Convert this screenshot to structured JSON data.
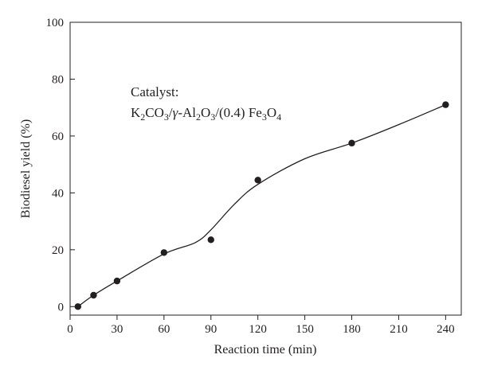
{
  "chart_data": {
    "type": "scatter",
    "title": "",
    "xlabel": "Reaction time (min)",
    "ylabel": "Biodiesel yield (%)",
    "xlim": [
      0,
      250
    ],
    "ylim": [
      -3,
      100
    ],
    "xticks": [
      "0",
      "30",
      "60",
      "90",
      "120",
      "150",
      "180",
      "210",
      "240"
    ],
    "yticks": [
      "0",
      "20",
      "40",
      "60",
      "80",
      "100"
    ],
    "grid": false,
    "series": [
      {
        "x": [
          5,
          15,
          30,
          60,
          90,
          120,
          180,
          240
        ],
        "y": [
          0,
          4,
          9,
          19,
          23.5,
          44.5,
          57.5,
          71
        ],
        "marker": "filled-circle",
        "color": "#231f20"
      }
    ],
    "fit_curve": [
      [
        5,
        0
      ],
      [
        15,
        4
      ],
      [
        30,
        9
      ],
      [
        60,
        18.5
      ],
      [
        80,
        22.5
      ],
      [
        90,
        27
      ],
      [
        105,
        36
      ],
      [
        120,
        43
      ],
      [
        150,
        52
      ],
      [
        180,
        57.5
      ],
      [
        210,
        64
      ],
      [
        240,
        71
      ]
    ],
    "annotation": {
      "line1": "Catalyst:",
      "k": "K",
      "k_sub": "2",
      "co": "CO",
      "co_sub": "3",
      "slash1": "/",
      "gamma": "γ",
      "al": "-Al",
      "al_sub": "2",
      "o": "O",
      "o_sub": "3",
      "mid": "/(0.4) Fe",
      "fe_sub": "3",
      "o2": "O",
      "o2_sub": "4"
    }
  }
}
